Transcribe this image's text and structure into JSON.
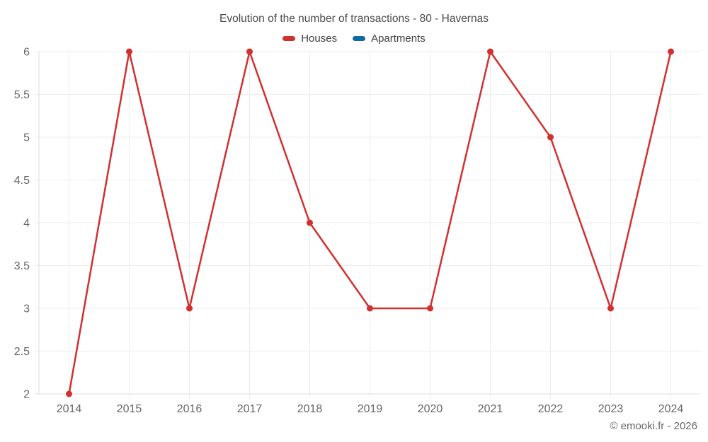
{
  "chart_data": {
    "type": "line",
    "title": "Evolution of the number of transactions - 80 - Havernas",
    "categories": [
      "2014",
      "2015",
      "2016",
      "2017",
      "2018",
      "2019",
      "2020",
      "2021",
      "2022",
      "2023",
      "2024"
    ],
    "series": [
      {
        "name": "Houses",
        "color": "#d2302f",
        "values": [
          2,
          6,
          3,
          6,
          4,
          3,
          3,
          6,
          5,
          3,
          6
        ]
      },
      {
        "name": "Apartments",
        "color": "#1269a2",
        "values": []
      }
    ],
    "ylim": [
      2,
      6
    ],
    "ytick_step": 0.5,
    "ytick_labels": [
      "2",
      "2.5",
      "3",
      "3.5",
      "4",
      "4.5",
      "5",
      "5.5",
      "6"
    ],
    "grid": true,
    "legend_position": "top"
  },
  "footer": {
    "copyright": "© emooki.fr - 2026"
  },
  "colors": {
    "grid": "#ececec",
    "axis": "#dedede",
    "tick_label": "#666666",
    "title_text": "#4a4a4a",
    "legend_text": "#3f3f3f"
  }
}
